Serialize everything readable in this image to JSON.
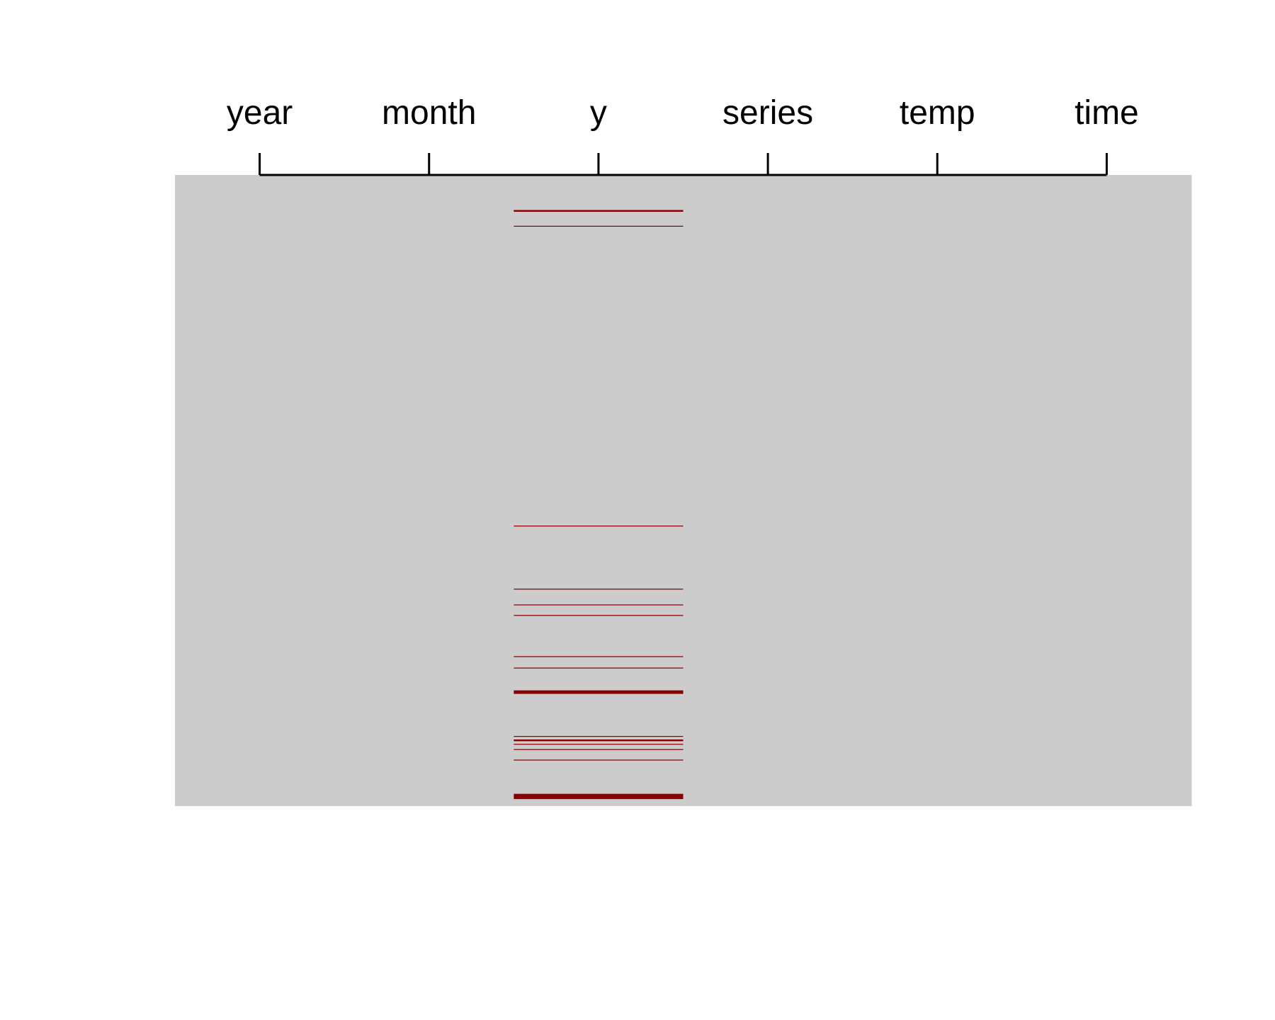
{
  "chart_data": {
    "type": "heatmap",
    "title": "",
    "xlabel": "",
    "ylabel": "",
    "variables": [
      "year",
      "month",
      "y",
      "series",
      "temp",
      "time"
    ],
    "n_rows": 720,
    "axis_position": "top",
    "grid": false,
    "legend": "none",
    "colors": {
      "present": "#cccccc",
      "missing": "#8b0000",
      "axis": "#000000",
      "background": "#ffffff"
    },
    "missing": {
      "year": [],
      "month": [],
      "series": [],
      "temp": [],
      "time": [],
      "y": [
        {
          "start": 40,
          "end": 41
        },
        {
          "start": 58,
          "end": 58
        },
        {
          "start": 400,
          "end": 400
        },
        {
          "start": 472,
          "end": 472
        },
        {
          "start": 490,
          "end": 490
        },
        {
          "start": 502,
          "end": 502
        },
        {
          "start": 549,
          "end": 549
        },
        {
          "start": 562,
          "end": 562
        },
        {
          "start": 588,
          "end": 591
        },
        {
          "start": 640,
          "end": 640
        },
        {
          "start": 644,
          "end": 645
        },
        {
          "start": 649,
          "end": 649
        },
        {
          "start": 655,
          "end": 655
        },
        {
          "start": 667,
          "end": 667
        },
        {
          "start": 706,
          "end": 711
        }
      ]
    }
  }
}
